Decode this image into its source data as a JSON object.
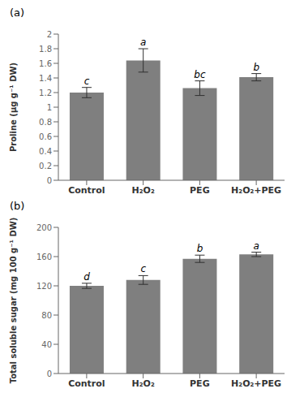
{
  "chart_data": [
    {
      "type": "bar",
      "title": "(a)",
      "categories": [
        "Control",
        "H₂O₂",
        "PEG",
        "H₂O₂+PEG"
      ],
      "values": [
        1.2,
        1.64,
        1.26,
        1.41
      ],
      "errors": [
        0.07,
        0.16,
        0.1,
        0.05
      ],
      "letters": [
        "c",
        "a",
        "bc",
        "b"
      ],
      "ylabel": "Proline (μg g⁻¹ DW)",
      "ylim": [
        0,
        2.0
      ],
      "yticks": [
        0,
        0.2,
        0.4,
        0.6,
        0.8,
        1,
        1.2,
        1.4,
        1.6,
        1.8,
        2
      ],
      "color": "#7f7f7f",
      "grid": false
    },
    {
      "type": "bar",
      "title": "(b)",
      "categories": [
        "Control",
        "H₂O₂",
        "PEG",
        "H₂O₂+PEG"
      ],
      "values": [
        120,
        128,
        157,
        163
      ],
      "errors": [
        3.5,
        6.0,
        5.0,
        3.0
      ],
      "letters": [
        "d",
        "c",
        "b",
        "a"
      ],
      "ylabel": "Total soluble sugar (mg 100 g⁻¹ DW)",
      "ylim": [
        0,
        200
      ],
      "yticks": [
        0,
        40,
        80,
        120,
        160,
        200
      ],
      "color": "#7f7f7f",
      "grid": false
    }
  ]
}
